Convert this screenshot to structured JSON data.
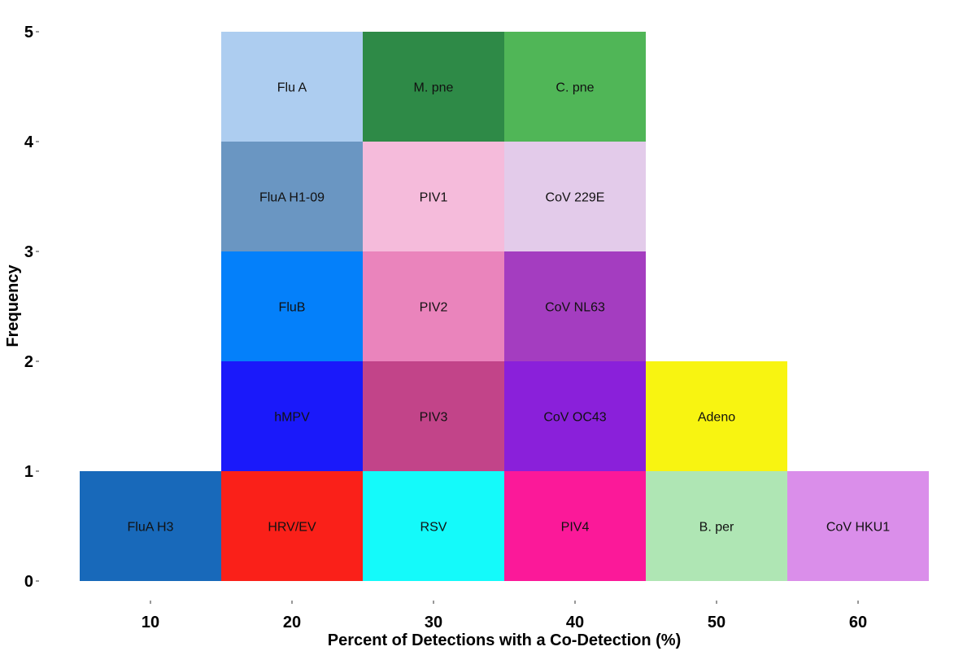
{
  "chart_data": {
    "type": "bar",
    "subtype": "stacked-tile-histogram",
    "title": "",
    "xlabel": "Percent of Detections with a Co-Detection (%)",
    "ylabel": "Frequency",
    "x_ticks": [
      "10",
      "20",
      "30",
      "40",
      "50",
      "60"
    ],
    "y_ticks": [
      "0",
      "1",
      "2",
      "3",
      "4",
      "5"
    ],
    "bin_width": 10,
    "xlim": [
      5,
      65
    ],
    "ylim": [
      0,
      5
    ],
    "grid": false,
    "legend": "none",
    "tiles": [
      {
        "label": "FluA H3",
        "x": 10,
        "level": 1,
        "color": "#1869BA"
      },
      {
        "label": "HRV/EV",
        "x": 20,
        "level": 1,
        "color": "#FA2019"
      },
      {
        "label": "hMPV",
        "x": 20,
        "level": 2,
        "color": "#1A19FA"
      },
      {
        "label": "FluB",
        "x": 20,
        "level": 3,
        "color": "#0480FA"
      },
      {
        "label": "FluA H1-09",
        "x": 20,
        "level": 4,
        "color": "#6A96C2"
      },
      {
        "label": "Flu A",
        "x": 20,
        "level": 5,
        "color": "#ADCDF0"
      },
      {
        "label": "RSV",
        "x": 30,
        "level": 1,
        "color": "#14FAFA"
      },
      {
        "label": "PIV3",
        "x": 30,
        "level": 2,
        "color": "#C24489"
      },
      {
        "label": "PIV2",
        "x": 30,
        "level": 3,
        "color": "#EA84BC"
      },
      {
        "label": "PIV1",
        "x": 30,
        "level": 4,
        "color": "#F5BBDB"
      },
      {
        "label": "M. pne",
        "x": 30,
        "level": 5,
        "color": "#2E8A47"
      },
      {
        "label": "PIV4",
        "x": 40,
        "level": 1,
        "color": "#FB1999"
      },
      {
        "label": "CoV OC43",
        "x": 40,
        "level": 2,
        "color": "#8A20DA"
      },
      {
        "label": "CoV NL63",
        "x": 40,
        "level": 3,
        "color": "#A43DC0"
      },
      {
        "label": "CoV 229E",
        "x": 40,
        "level": 4,
        "color": "#E3CBEA"
      },
      {
        "label": "C. pne",
        "x": 40,
        "level": 5,
        "color": "#50B657"
      },
      {
        "label": "B. per",
        "x": 50,
        "level": 1,
        "color": "#AFE6B4"
      },
      {
        "label": "Adeno",
        "x": 50,
        "level": 2,
        "color": "#F8F411"
      },
      {
        "label": "CoV HKU1",
        "x": 60,
        "level": 1,
        "color": "#DA8EEA"
      }
    ]
  }
}
